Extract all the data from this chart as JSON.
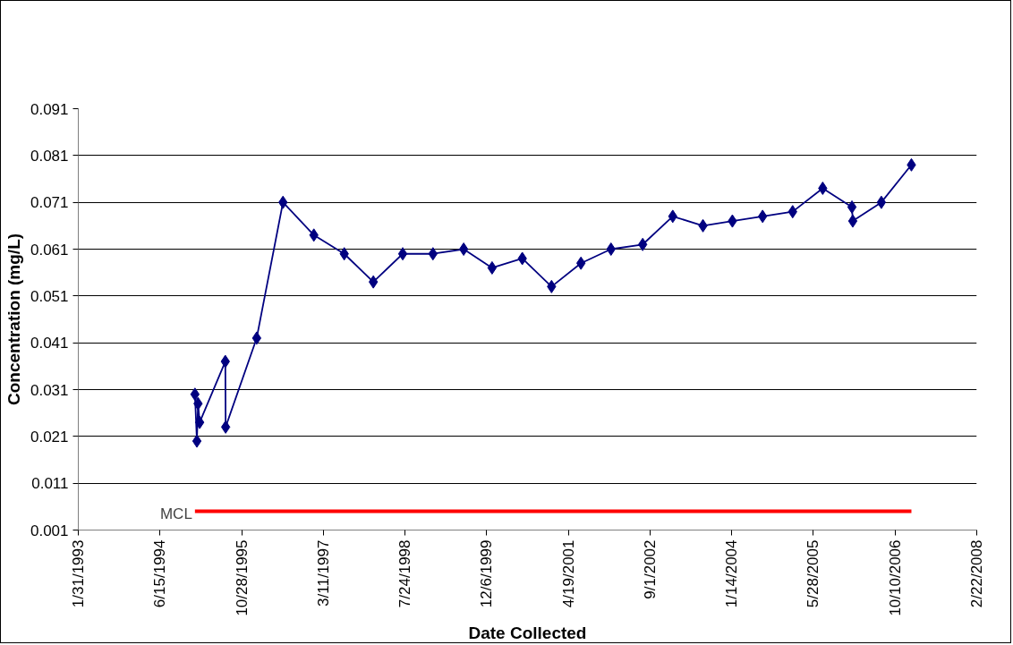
{
  "chart_data": {
    "type": "line",
    "xlabel": "Date Collected",
    "ylabel": "Concentration (mg/L)",
    "x": [
      "1995-01-15",
      "1995-01-27",
      "1995-02-03",
      "1995-02-13",
      "1995-07-20",
      "1995-07-22",
      "1996-01-28",
      "1996-07-07",
      "1997-01-12",
      "1997-07-17",
      "1998-01-11",
      "1998-07-10",
      "1999-01-11",
      "1999-07-18",
      "2000-01-08",
      "2000-07-11",
      "2001-01-06",
      "2001-07-05",
      "2002-01-05",
      "2002-07-18",
      "2003-01-18",
      "2003-07-22",
      "2004-01-18",
      "2004-07-21",
      "2005-01-21",
      "2005-07-24",
      "2006-01-19",
      "2006-01-24",
      "2006-07-18",
      "2007-01-18"
    ],
    "series": [
      {
        "color": "#000080",
        "values": [
          0.03,
          0.02,
          0.028,
          0.024,
          0.037,
          0.023,
          0.042,
          0.071,
          0.064,
          0.06,
          0.054,
          0.06,
          0.06,
          0.061,
          0.057,
          0.059,
          0.053,
          0.058,
          0.061,
          0.062,
          0.068,
          0.066,
          0.067,
          0.068,
          0.069,
          0.074,
          0.07,
          0.067,
          0.071,
          0.079
        ],
        "marker": "diamond"
      },
      {
        "name": "MCL",
        "color": "#ff0000",
        "x": [
          "1995-01-15",
          "2007-01-18"
        ],
        "values": [
          0.005,
          0.005
        ],
        "marker": "none"
      }
    ],
    "xlim": [
      "1993-01-31",
      "2008-02-22"
    ],
    "xticks": [
      {
        "value": "1993-01-31",
        "label": "1/31/1993"
      },
      {
        "value": "1994-06-15",
        "label": "6/15/1994"
      },
      {
        "value": "1995-10-28",
        "label": "10/28/1995"
      },
      {
        "value": "1997-03-11",
        "label": "3/11/1997"
      },
      {
        "value": "1998-07-24",
        "label": "7/24/1998"
      },
      {
        "value": "1999-12-06",
        "label": "12/6/1999"
      },
      {
        "value": "2001-04-19",
        "label": "4/19/2001"
      },
      {
        "value": "2002-09-01",
        "label": "9/1/2002"
      },
      {
        "value": "2004-01-14",
        "label": "1/14/2004"
      },
      {
        "value": "2005-05-28",
        "label": "5/28/2005"
      },
      {
        "value": "2006-10-10",
        "label": "10/10/2006"
      },
      {
        "value": "2008-02-22",
        "label": "2/22/2008"
      }
    ],
    "ylim": [
      0.001,
      0.091
    ],
    "yticks": [
      0.001,
      0.011,
      0.021,
      0.031,
      0.041,
      0.051,
      0.061,
      0.071,
      0.081,
      0.091
    ],
    "grid": "y"
  }
}
